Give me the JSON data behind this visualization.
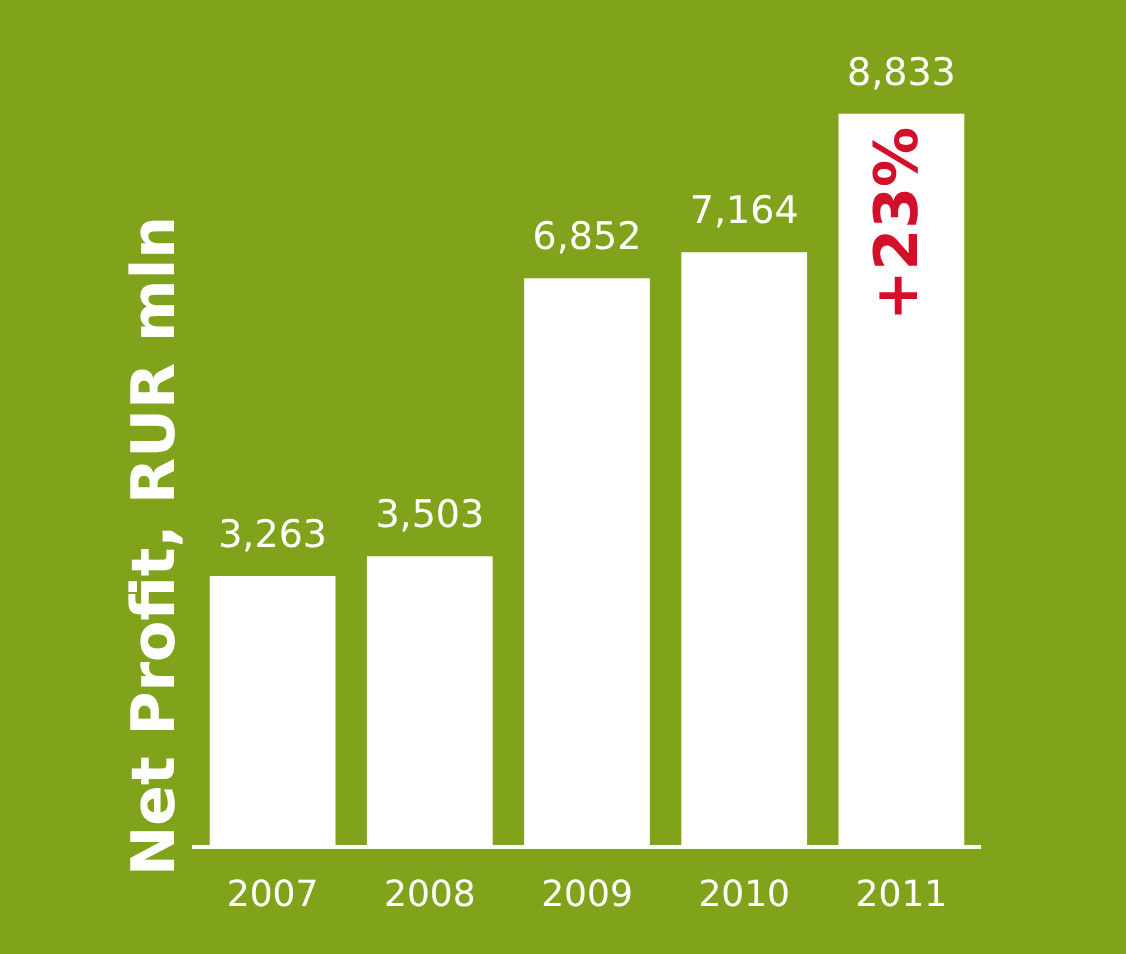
{
  "chart_data": {
    "type": "bar",
    "ylabel": "Net Profit, RUR mln",
    "categories": [
      "2007",
      "2008",
      "2009",
      "2010",
      "2011"
    ],
    "values": [
      3263,
      3503,
      6852,
      7164,
      8833
    ],
    "color": "#ffffff",
    "value_labels": [
      "3,263",
      "3,503",
      "6,852",
      "7,164",
      "8,833"
    ],
    "annotations": [
      "+23%"
    ],
    "grid": false,
    "legend": false,
    "tick_labels": "x"
  }
}
